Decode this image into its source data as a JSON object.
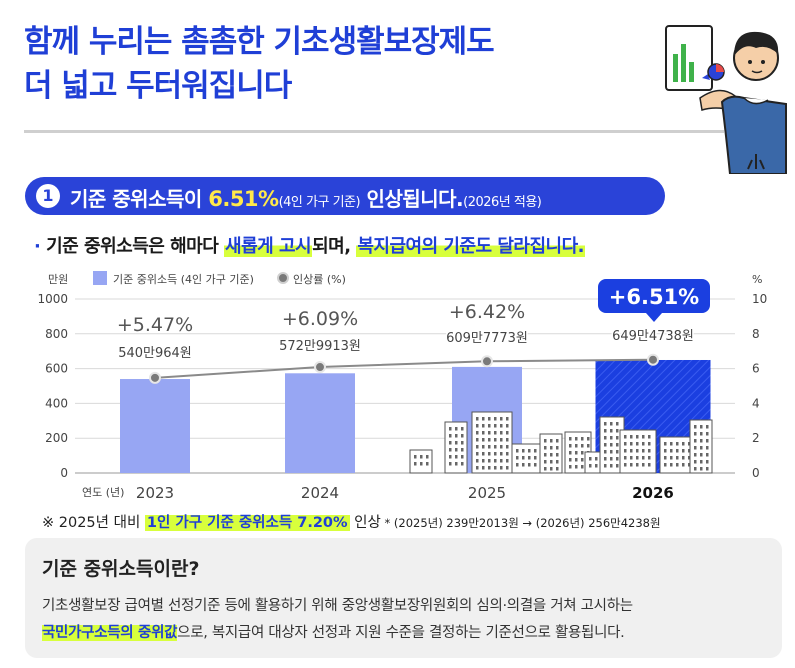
{
  "header": {
    "title_line1": "함께 누리는 촘촘한 기초생활보장제도",
    "title_line2": "더 넓고 두터워집니다"
  },
  "section": {
    "number": "1",
    "text_pre": "기준 중위소득이 ",
    "text_pct": "6.51%",
    "text_hh": "(4인 가구 기준)",
    "text_post": " 인상됩니다.",
    "text_year": "(2026년 적용)"
  },
  "subtitle": {
    "bullet": "·",
    "part1": "기준 중위소득은 해마다 ",
    "hl1": "새롭게 고시",
    "part2": "되며, ",
    "hl2": "복지급여의 기준도 달라집니다."
  },
  "chart_data": {
    "type": "bar",
    "categories": [
      "2023",
      "2024",
      "2025",
      "2026"
    ],
    "series": [
      {
        "name": "기준 중위소득 (4인 가구 기준)",
        "type": "bar",
        "values": [
          540.0964,
          572.9913,
          609.7773,
          649.4738
        ],
        "labels": [
          "540만964원",
          "572만9913원",
          "609만7773원",
          "649만4738원"
        ]
      },
      {
        "name": "인상률 (%)",
        "type": "line",
        "values": [
          5.47,
          6.09,
          6.42,
          6.51
        ],
        "labels": [
          "+5.47%",
          "+6.09%",
          "+6.42%",
          "+6.51%"
        ]
      }
    ],
    "ylabel_left": "만원",
    "ylabel_right": "%",
    "ylim_left": [
      0,
      1000
    ],
    "ylim_right": [
      0,
      10
    ],
    "yticks_left": [
      "0",
      "200",
      "400",
      "600",
      "800",
      "1000"
    ],
    "yticks_right": [
      "0",
      "2",
      "4",
      "6",
      "8",
      "10"
    ],
    "xlabel": "연도 (년)",
    "legend_position": "top-left",
    "colors": {
      "bar": "#97a6f3",
      "bar_highlight": "#1b3fe0",
      "line": "#8a8a8a",
      "marker": "#7a7a7a",
      "badge": "#1b3fe0"
    }
  },
  "note": {
    "prefix": "※ 2025년 대비 ",
    "hl": "1인 가구 기준 중위소득 7.20%",
    "mid": " 인상",
    "small": " * (2025년) 239만2013원 → (2026년) 256만4238원"
  },
  "info_box": {
    "title": "기준 중위소득이란?",
    "line1": "기초생활보장 급여별 선정기준 등에 활용하기 위해 중앙생활보장위원회의 심의·의결을 거쳐 고시하는",
    "line2_hl": "국민가구소득의 중위값",
    "line2_rest": "으로, 복지급여 대상자 선정과 지원 수준을 결정하는 기준선으로 활용됩니다."
  }
}
